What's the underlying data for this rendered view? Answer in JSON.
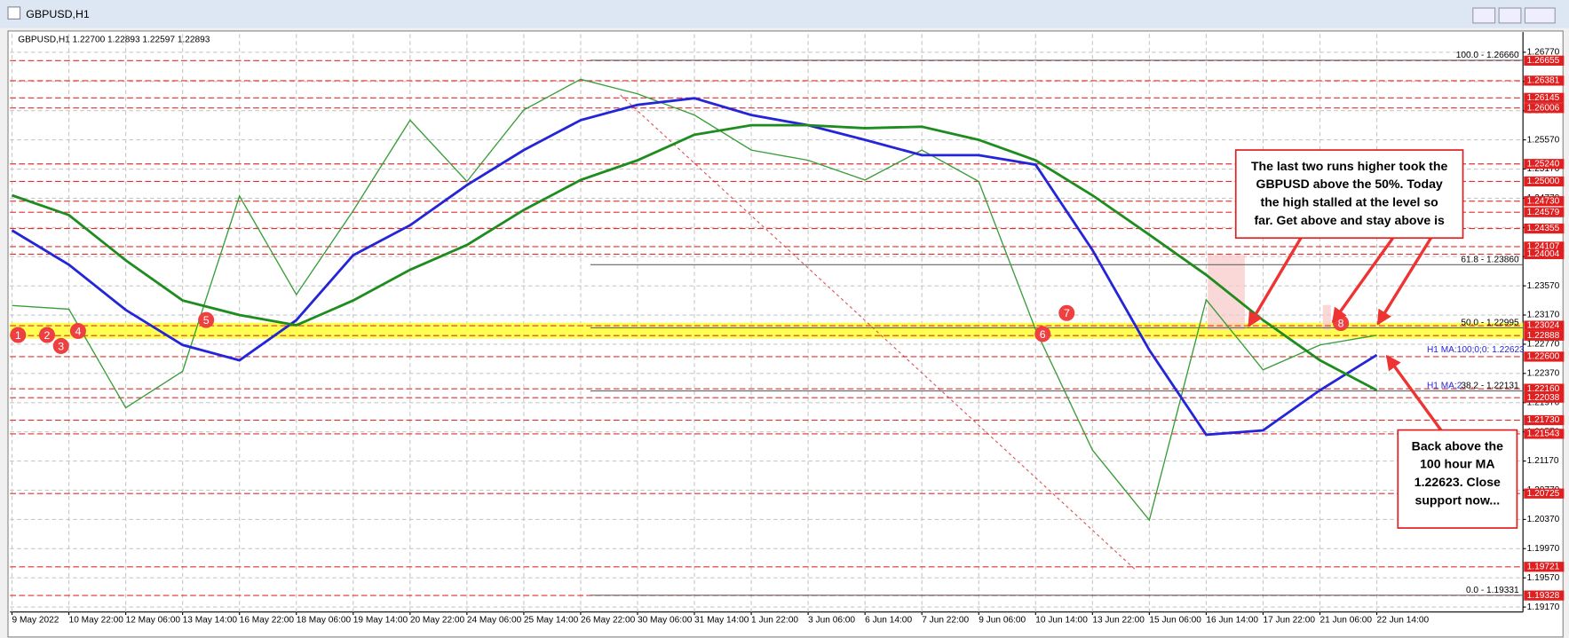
{
  "window": {
    "title": "GBPUSD,H1"
  },
  "chart_data": {
    "type": "line",
    "info": "GBPUSD,H1  1.22700 1.22893 1.22597 1.22893",
    "categories": [
      "9 May 2022",
      "10 May 22:00",
      "12 May 06:00",
      "13 May 14:00",
      "16 May 22:00",
      "18 May 06:00",
      "19 May 14:00",
      "20 May 22:00",
      "24 May 06:00",
      "25 May 14:00",
      "26 May 22:00",
      "30 May 06:00",
      "31 May 14:00",
      "1 Jun 22:00",
      "3 Jun 06:00",
      "6 Jun 14:00",
      "7 Jun 22:00",
      "9 Jun 06:00",
      "10 Jun 14:00",
      "13 Jun 22:00",
      "15 Jun 06:00",
      "16 Jun 14:00",
      "17 Jun 22:00",
      "21 Jun 06:00",
      "22 Jun 14:00"
    ],
    "series": [
      {
        "color": "#3a9d3a",
        "values": [
          1.233,
          1.2325,
          1.219,
          1.224,
          1.248,
          1.2345,
          1.246,
          1.2584,
          1.25,
          1.2598,
          1.264,
          1.262,
          1.2591,
          1.2543,
          1.2529,
          1.2502,
          1.2543,
          1.25,
          1.2297,
          1.2132,
          1.2036,
          1.2338,
          1.2242,
          1.2276,
          1.22893
        ]
      },
      {
        "color": "#2424d8",
        "values": [
          1.2433,
          1.2386,
          1.2324,
          1.2276,
          1.2255,
          1.231,
          1.2399,
          1.244,
          1.2495,
          1.2543,
          1.2584,
          1.2605,
          1.2614,
          1.2591,
          1.2577,
          1.2557,
          1.2536,
          1.2536,
          1.2523,
          1.2406,
          1.2269,
          1.2153,
          1.2159,
          1.2214,
          1.22623
        ]
      },
      {
        "color": "#1f8c1f",
        "values": [
          1.2481,
          1.2454,
          1.2392,
          1.2337,
          1.2317,
          1.2303,
          1.2337,
          1.2379,
          1.2413,
          1.2461,
          1.2502,
          1.2529,
          1.2564,
          1.2577,
          1.2577,
          1.2573,
          1.2575,
          1.2557,
          1.2529,
          1.2481,
          1.2427,
          1.2372,
          1.231,
          1.2255,
          1.2214
        ]
      }
    ],
    "ylim": [
      1.19102,
      1.2702
    ],
    "yticks": [
      {
        "value": 1.1917,
        "label": "1.19170"
      },
      {
        "value": 1.1957,
        "label": "1.19570"
      },
      {
        "value": 1.1997,
        "label": "1.19970"
      },
      {
        "value": 1.2037,
        "label": "1.20370"
      },
      {
        "value": 1.2077,
        "label": "1.20770"
      },
      {
        "value": 1.2117,
        "label": "1.21170"
      },
      {
        "value": 1.2157,
        "label": "1.21570"
      },
      {
        "value": 1.2197,
        "label": "1.21970"
      },
      {
        "value": 1.2237,
        "label": "1.22370"
      },
      {
        "value": 1.2277,
        "label": "1.22770"
      },
      {
        "value": 1.2317,
        "label": "1.23170"
      },
      {
        "value": 1.2357,
        "label": "1.23570"
      },
      {
        "value": 1.2397,
        "label": "1.23970"
      },
      {
        "value": 1.2437,
        "label": "1.24370"
      },
      {
        "value": 1.2477,
        "label": "1.24770"
      },
      {
        "value": 1.2517,
        "label": "1.25170"
      },
      {
        "value": 1.2557,
        "label": "1.25570"
      },
      {
        "value": 1.2597,
        "label": "1.25970"
      },
      {
        "value": 1.2637,
        "label": "1.26370"
      },
      {
        "value": 1.2677,
        "label": "1.26770"
      }
    ],
    "grid": true,
    "levels": [
      {
        "value": 1.26655,
        "label": "1.26655"
      },
      {
        "value": 1.26381,
        "label": "1.26381"
      },
      {
        "value": 1.26145,
        "label": "1.26145"
      },
      {
        "value": 1.26006,
        "label": "1.26006"
      },
      {
        "value": 1.2524,
        "label": "1.25240"
      },
      {
        "value": 1.25,
        "label": "1.25000"
      },
      {
        "value": 1.2473,
        "label": "1.24730"
      },
      {
        "value": 1.24579,
        "label": "1.24579"
      },
      {
        "value": 1.24355,
        "label": "1.24355"
      },
      {
        "value": 1.24107,
        "label": "1.24107"
      },
      {
        "value": 1.24004,
        "label": "1.24004"
      },
      {
        "value": 1.23024,
        "label": "1.23024"
      },
      {
        "value": 1.22888,
        "label": "1.22888"
      },
      {
        "value": 1.226,
        "label": "1.22600"
      },
      {
        "value": 1.2216,
        "label": "1.22160"
      },
      {
        "value": 1.22038,
        "label": "1.22038"
      },
      {
        "value": 1.2173,
        "label": "1.21730"
      },
      {
        "value": 1.21543,
        "label": "1.21543"
      },
      {
        "value": 1.20725,
        "label": "1.20725"
      },
      {
        "value": 1.19721,
        "label": "1.19721"
      },
      {
        "value": 1.19328,
        "label": "1.19328"
      }
    ],
    "fib": [
      {
        "value": 1.2666,
        "label": "100.0 - 1.26660"
      },
      {
        "value": 1.2386,
        "label": "61.8 - 1.23860"
      },
      {
        "value": 1.22995,
        "label": "50.0 - 1.22995"
      },
      {
        "value": 1.22131,
        "label": "38.2 - 1.22131"
      },
      {
        "value": 1.19331,
        "label": "0.0 - 1.19331"
      }
    ],
    "ma_labels": [
      {
        "value": 1.22623,
        "label": "H1 MA:100;0;0: 1.22623"
      },
      {
        "value": 1.22131,
        "label": "H1 MA:2"
      }
    ],
    "zone": [
      1.22888,
      1.23024
    ],
    "markers": [
      1,
      2,
      3,
      4,
      5,
      6,
      7,
      8
    ],
    "annotations": [
      {
        "lines": [
          "The last two runs higher took the",
          "GBPUSD above the 50%. Today",
          "the high stalled at the level so",
          "far. Get above and stay above is"
        ]
      },
      {
        "lines": [
          "Back above the",
          "100 hour MA",
          "1.22623. Close",
          "support now..."
        ]
      }
    ]
  }
}
